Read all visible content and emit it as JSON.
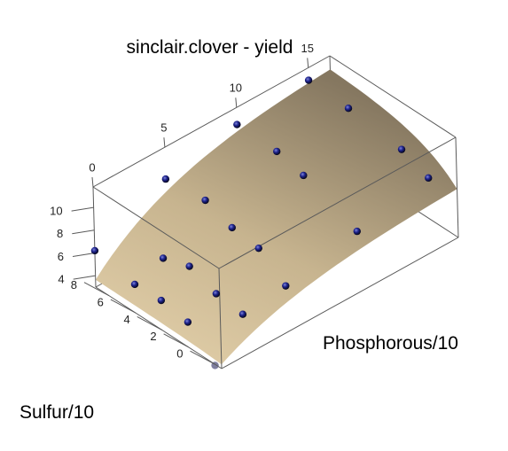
{
  "chart_data": {
    "type": "surface3d",
    "title": "sinclair.clover - yield",
    "xlabel": "Phosphorous/10",
    "ylabel": "",
    "zlabel": "Sulfur/10",
    "x_ticks": [
      "0",
      "5",
      "10",
      "15"
    ],
    "y_ticks": [
      "4",
      "6",
      "8",
      "10"
    ],
    "z_ticks": [
      "0",
      "2",
      "4",
      "6",
      "8"
    ],
    "xlim": [
      0,
      16.5
    ],
    "ylim": [
      3,
      11.8
    ],
    "zlim": [
      -0.5,
      9
    ],
    "surface_color": "#d2bd98",
    "point_color": "#1a1a80",
    "points": [
      {
        "x": 0,
        "y": 2.9,
        "z": 0
      },
      {
        "x": 0,
        "y": 5.2,
        "z": 2
      },
      {
        "x": 0,
        "y": 5.6,
        "z": 4
      },
      {
        "x": 0,
        "y": 5.5,
        "z": 6
      },
      {
        "x": 0,
        "y": 6.2,
        "z": 9
      },
      {
        "x": 2,
        "y": 6.0,
        "z": 0
      },
      {
        "x": 2,
        "y": 7.2,
        "z": 4
      },
      {
        "x": 2,
        "y": 6.4,
        "z": 6
      },
      {
        "x": 2,
        "y": 6.3,
        "z": 2
      },
      {
        "x": 5,
        "y": 6.4,
        "z": 0
      },
      {
        "x": 5,
        "y": 8.5,
        "z": 4
      },
      {
        "x": 5,
        "y": 9.0,
        "z": 9
      },
      {
        "x": 5,
        "y": 9.4,
        "z": 6
      },
      {
        "x": 5,
        "y": 8.2,
        "z": 2
      },
      {
        "x": 10,
        "y": 7.7,
        "z": 0
      },
      {
        "x": 10,
        "y": 9.6,
        "z": 4
      },
      {
        "x": 10,
        "y": 10.2,
        "z": 6
      },
      {
        "x": 10,
        "y": 10.3,
        "z": 9
      },
      {
        "x": 15,
        "y": 8.9,
        "z": 0
      },
      {
        "x": 15,
        "y": 9.9,
        "z": 2
      },
      {
        "x": 15,
        "y": 9.4,
        "z": 4
      },
      {
        "x": 15,
        "y": 10.5,
        "z": 6
      },
      {
        "x": 15,
        "y": 10.7,
        "z": 9
      }
    ]
  }
}
